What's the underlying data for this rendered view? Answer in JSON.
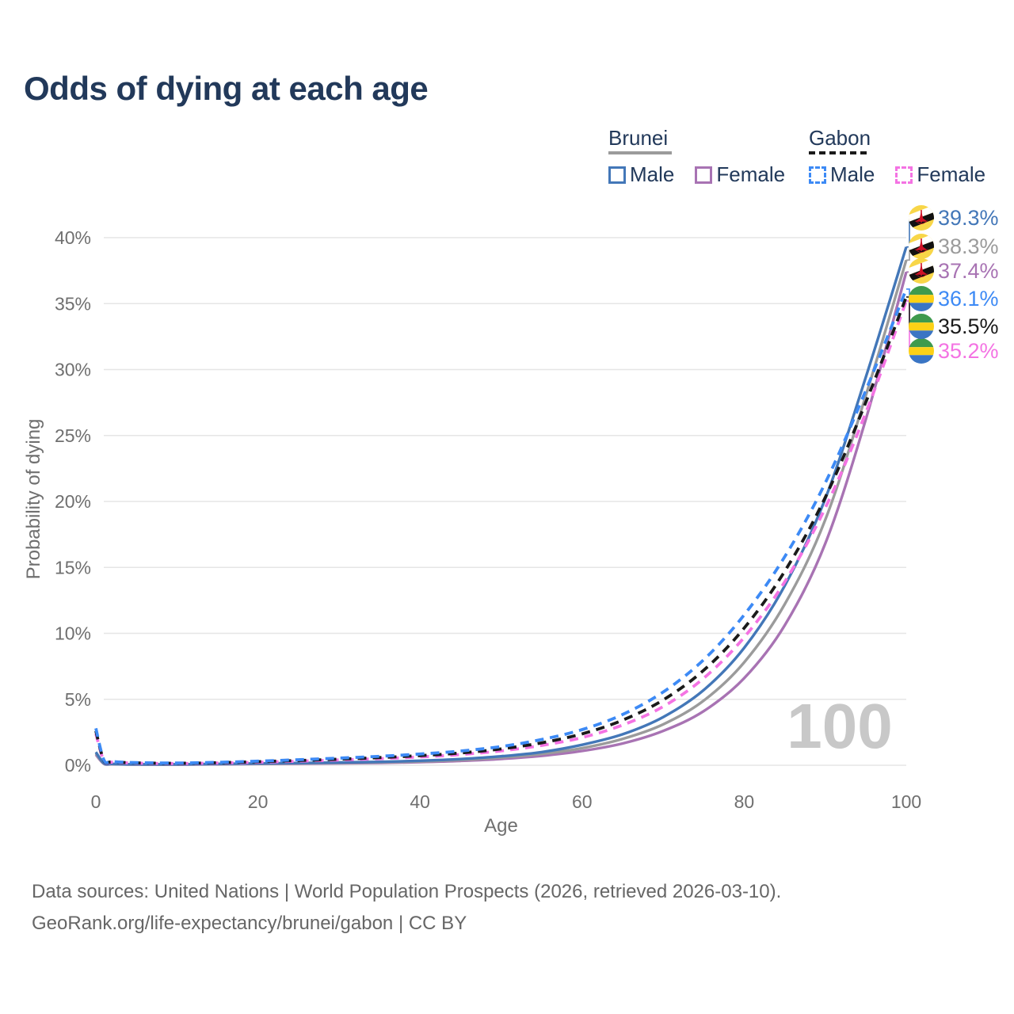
{
  "title": "Odds of dying at each age",
  "legend": {
    "groups": [
      {
        "country": "Brunei",
        "line_style": "solid",
        "line_color": "#9b9b9b",
        "items": [
          {
            "label": "Male",
            "color": "#4377b8",
            "dash": "solid"
          },
          {
            "label": "Female",
            "color": "#a873b3",
            "dash": "solid"
          }
        ]
      },
      {
        "country": "Gabon",
        "line_style": "dashed",
        "line_color": "#1a1a1a",
        "items": [
          {
            "label": "Male",
            "color": "#3d8af5",
            "dash": "dashed"
          },
          {
            "label": "Female",
            "color": "#f473e3",
            "dash": "dashed"
          }
        ]
      }
    ]
  },
  "watermark": "100",
  "footer": {
    "line1": "Data sources: United Nations | World Population Prospects (2026, retrieved 2026-03-10).",
    "line2": "GeoRank.org/life-expectancy/brunei/gabon | CC BY"
  },
  "chart_data": {
    "type": "line",
    "title": "Odds of dying at each age",
    "xlabel": "Age",
    "ylabel": "Probability of dying",
    "xlim": [
      0,
      100
    ],
    "ylim": [
      0,
      40
    ],
    "grid": true,
    "legend_position": "top-right",
    "x_ticks": [
      0,
      20,
      40,
      60,
      80,
      100
    ],
    "y_ticks": [
      "0%",
      "5%",
      "10%",
      "15%",
      "20%",
      "25%",
      "30%",
      "35%",
      "40%"
    ],
    "x": [
      0,
      1,
      2,
      5,
      10,
      15,
      20,
      25,
      30,
      35,
      40,
      45,
      50,
      55,
      60,
      65,
      70,
      75,
      80,
      85,
      90,
      95,
      100
    ],
    "series": [
      {
        "name": "Brunei Female",
        "country": "Brunei",
        "flag": "brunei",
        "color": "#a873b3",
        "dash": "solid",
        "end_label": "37.4%",
        "end_label_slot": 2,
        "values": [
          0.8,
          0.11,
          0.08,
          0.05,
          0.05,
          0.07,
          0.1,
          0.12,
          0.15,
          0.18,
          0.24,
          0.33,
          0.48,
          0.71,
          1.08,
          1.65,
          2.6,
          4.1,
          6.6,
          10.6,
          16.8,
          26.2,
          37.4
        ]
      },
      {
        "name": "Brunei",
        "country": "Brunei",
        "flag": "brunei",
        "color": "#9b9b9b",
        "dash": "solid",
        "end_label": "38.3%",
        "end_label_slot": 1,
        "values": [
          0.9,
          0.13,
          0.09,
          0.06,
          0.06,
          0.09,
          0.12,
          0.15,
          0.18,
          0.22,
          0.29,
          0.4,
          0.58,
          0.86,
          1.3,
          2.0,
          3.1,
          4.9,
          7.8,
          12.2,
          18.6,
          28.0,
          38.3
        ]
      },
      {
        "name": "Brunei Male",
        "country": "Brunei",
        "flag": "brunei",
        "color": "#4377b8",
        "dash": "solid",
        "end_label": "39.3%",
        "end_label_slot": 0,
        "values": [
          1.0,
          0.15,
          0.1,
          0.07,
          0.07,
          0.1,
          0.14,
          0.17,
          0.21,
          0.26,
          0.34,
          0.47,
          0.68,
          1.0,
          1.55,
          2.35,
          3.65,
          5.7,
          8.9,
          13.6,
          20.2,
          29.4,
          39.3
        ]
      },
      {
        "name": "Gabon Female",
        "country": "Gabon",
        "flag": "gabon",
        "color": "#f473e3",
        "dash": "dashed",
        "end_label": "35.2%",
        "end_label_slot": 5,
        "values": [
          2.4,
          0.33,
          0.23,
          0.16,
          0.13,
          0.17,
          0.23,
          0.31,
          0.4,
          0.5,
          0.63,
          0.81,
          1.09,
          1.5,
          2.1,
          3.05,
          4.45,
          6.6,
          9.7,
          13.9,
          19.5,
          26.7,
          35.2
        ]
      },
      {
        "name": "Gabon",
        "country": "Gabon",
        "flag": "gabon",
        "color": "#1a1a1a",
        "dash": "dashed",
        "end_label": "35.5%",
        "end_label_slot": 4,
        "values": [
          2.6,
          0.36,
          0.25,
          0.18,
          0.15,
          0.19,
          0.27,
          0.36,
          0.46,
          0.58,
          0.73,
          0.93,
          1.24,
          1.7,
          2.38,
          3.42,
          4.95,
          7.2,
          10.4,
          14.7,
          20.3,
          27.5,
          35.5
        ]
      },
      {
        "name": "Gabon Male",
        "country": "Gabon",
        "flag": "gabon",
        "color": "#3d8af5",
        "dash": "dashed",
        "end_label": "36.1%",
        "end_label_slot": 3,
        "values": [
          2.8,
          0.4,
          0.28,
          0.2,
          0.17,
          0.22,
          0.31,
          0.42,
          0.54,
          0.68,
          0.85,
          1.08,
          1.42,
          1.95,
          2.7,
          3.85,
          5.55,
          8.0,
          11.4,
          15.8,
          21.4,
          28.4,
          36.1
        ]
      }
    ],
    "flag_colors": {
      "brunei": {
        "field": "#f8d648",
        "stripe_top": "#ffffff",
        "stripe_bottom": "#111111",
        "emblem": "#cf1126"
      },
      "gabon": {
        "top": "#3e9a4d",
        "middle": "#fcd116",
        "bottom": "#3a75c4"
      }
    }
  }
}
